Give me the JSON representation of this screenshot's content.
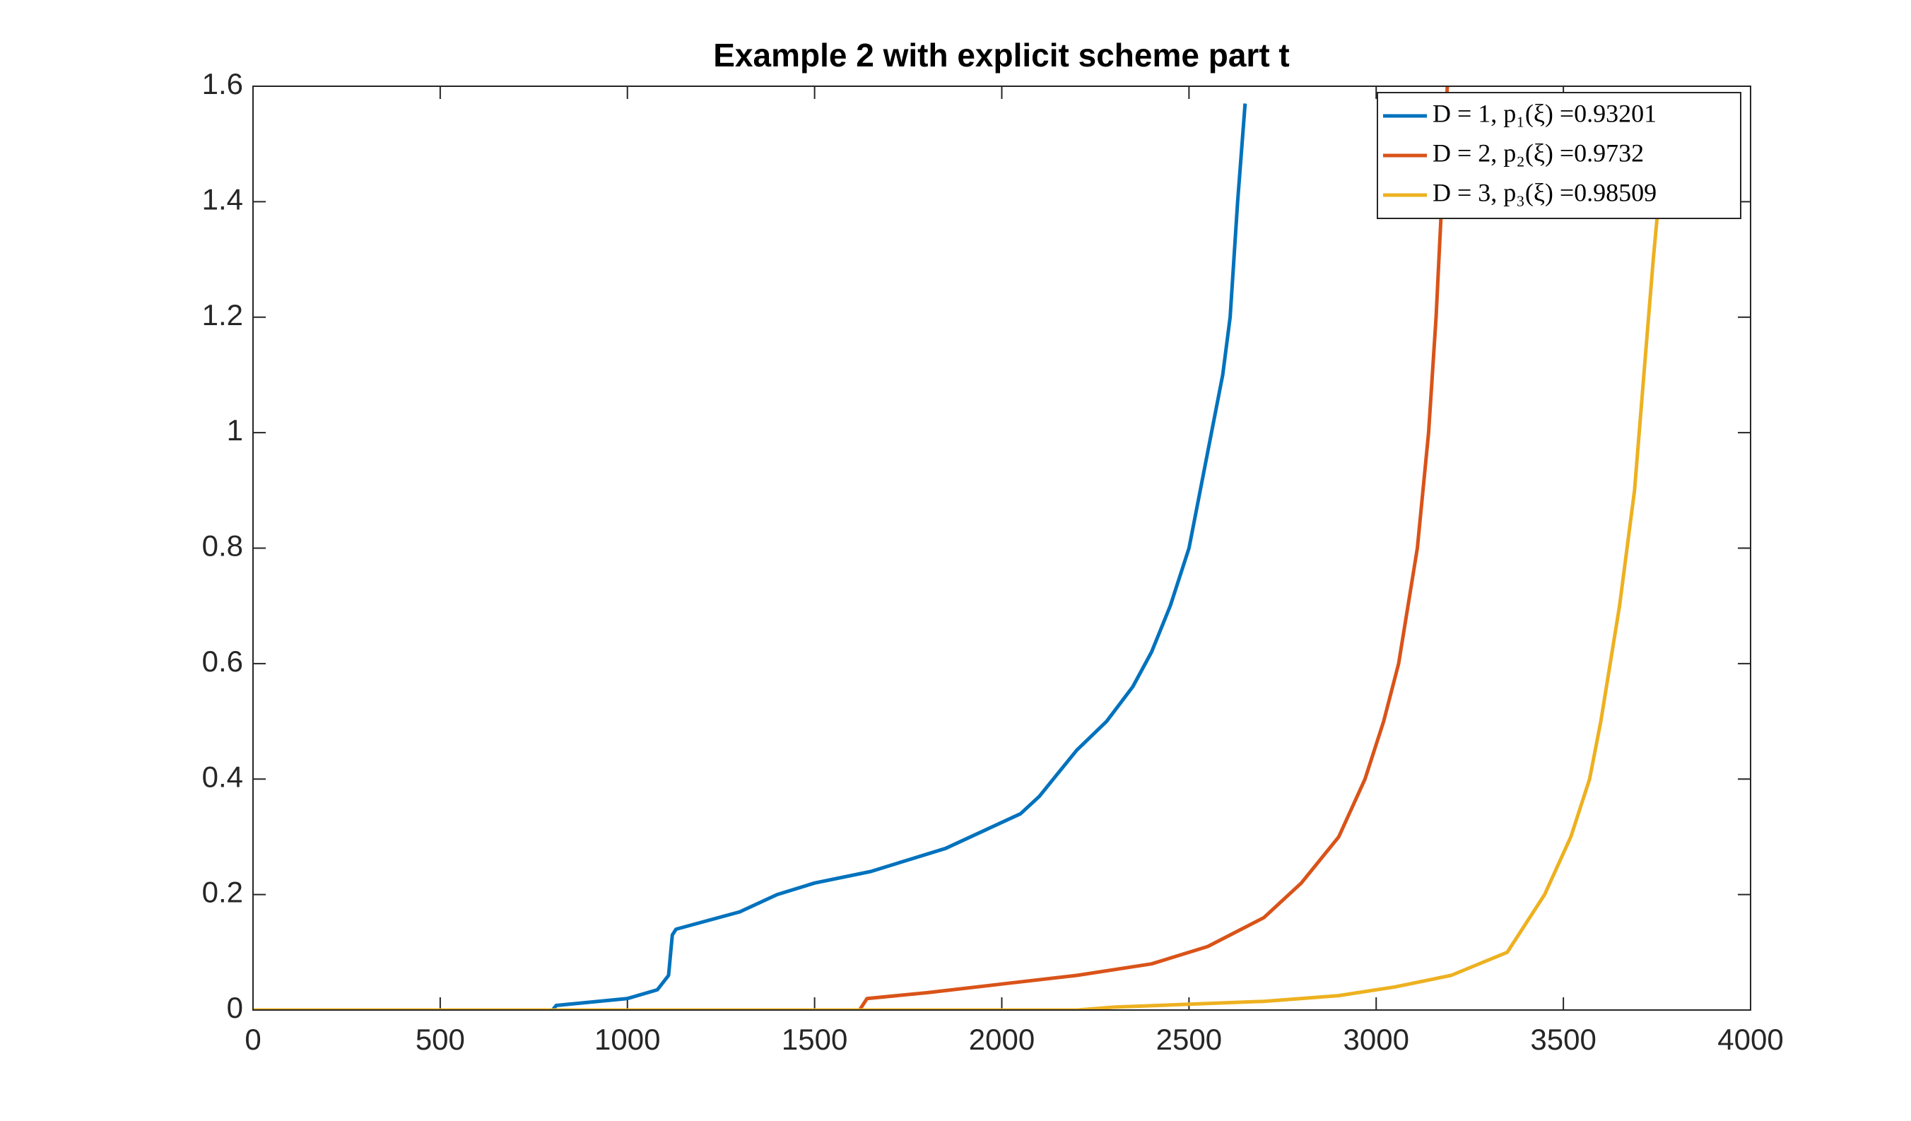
{
  "chart_data": {
    "type": "line",
    "title": "Example 2 with explicit scheme part t",
    "xlim": [
      0,
      4000
    ],
    "xticks": [
      0,
      500,
      1000,
      1500,
      2000,
      2500,
      3000,
      3500,
      4000
    ],
    "ylim": [
      0,
      1.6
    ],
    "yticks": [
      0,
      0.2,
      0.4,
      0.6,
      0.8,
      1,
      1.2,
      1.4,
      1.6
    ],
    "grid": false,
    "legend": "upper right",
    "series": [
      {
        "name": "D = 1, p₁(ξ) =0.93201",
        "color": "#0072bd",
        "x": [
          0,
          800,
          810,
          1000,
          1080,
          1110,
          1120,
          1130,
          1300,
          1400,
          1500,
          1650,
          1750,
          1850,
          1950,
          2050,
          2100,
          2150,
          2200,
          2280,
          2350,
          2400,
          2450,
          2500,
          2530,
          2560,
          2590,
          2610,
          2630,
          2650
        ],
        "values": [
          0,
          0,
          0.008,
          0.02,
          0.035,
          0.06,
          0.13,
          0.14,
          0.17,
          0.2,
          0.22,
          0.24,
          0.26,
          0.28,
          0.31,
          0.34,
          0.37,
          0.41,
          0.45,
          0.5,
          0.56,
          0.62,
          0.7,
          0.8,
          0.9,
          1.0,
          1.1,
          1.2,
          1.4,
          1.57
        ]
      },
      {
        "name": "D = 2, p₂(ξ) =0.9732",
        "color": "#d95319",
        "x": [
          0,
          1620,
          1640,
          1800,
          2000,
          2200,
          2400,
          2550,
          2700,
          2800,
          2900,
          2970,
          3020,
          3060,
          3110,
          3140,
          3160,
          3175,
          3190
        ],
        "values": [
          0,
          0,
          0.02,
          0.03,
          0.045,
          0.06,
          0.08,
          0.11,
          0.16,
          0.22,
          0.3,
          0.4,
          0.5,
          0.6,
          0.8,
          1.0,
          1.2,
          1.4,
          1.6
        ]
      },
      {
        "name": "D = 3, p₃(ξ) =0.98509",
        "color": "#edb120",
        "x": [
          0,
          2200,
          2300,
          2500,
          2700,
          2900,
          3050,
          3200,
          3350,
          3450,
          3520,
          3570,
          3600,
          3650,
          3690,
          3715,
          3740,
          3750
        ],
        "values": [
          0,
          0,
          0.005,
          0.01,
          0.015,
          0.025,
          0.04,
          0.06,
          0.1,
          0.2,
          0.3,
          0.4,
          0.5,
          0.7,
          0.9,
          1.1,
          1.3,
          1.37
        ]
      }
    ]
  }
}
